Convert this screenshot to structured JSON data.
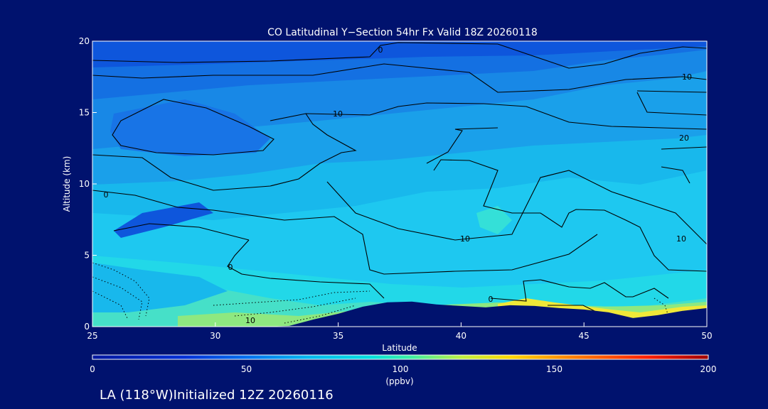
{
  "colors": {
    "background": "#00126e",
    "terrain": "#00126e",
    "contour": "#000000",
    "text": "#ffffff"
  },
  "chart_data": {
    "type": "heatmap",
    "title": "CO Latitudinal Y−Section 54hr  Fx Valid 18Z 20260118",
    "xlabel": "Latitude",
    "ylabel": "Altitude (km)",
    "xlim": [
      25,
      50
    ],
    "ylim": [
      0,
      20
    ],
    "x_ticks": [
      "25",
      "30",
      "35",
      "40",
      "45",
      "50"
    ],
    "y_ticks": [
      "0",
      "5",
      "10",
      "15",
      "20"
    ],
    "colorbar": {
      "range": [
        0,
        200
      ],
      "ticks": [
        "0",
        "50",
        "100",
        "150",
        "200"
      ],
      "unit_label": "(ppbv)"
    },
    "contour_labels": [
      "0",
      "10",
      "0",
      "10",
      "10",
      "20",
      "10",
      "0",
      "0",
      "10"
    ],
    "terrain_profile": {
      "lat": [
        25,
        30,
        32,
        33,
        34,
        35,
        36,
        37,
        38,
        39,
        40,
        41,
        42,
        43,
        44,
        45,
        46,
        47,
        48,
        49,
        50
      ],
      "alt_km": [
        0,
        0,
        0,
        0.05,
        0.5,
        0.9,
        1.4,
        1.7,
        1.75,
        1.55,
        1.45,
        1.35,
        1.5,
        1.45,
        1.3,
        1.2,
        1.0,
        0.6,
        0.8,
        1.1,
        1.3
      ]
    }
  },
  "footer": {
    "caption": "LA (118°W)Initialized 12Z 20260116"
  }
}
